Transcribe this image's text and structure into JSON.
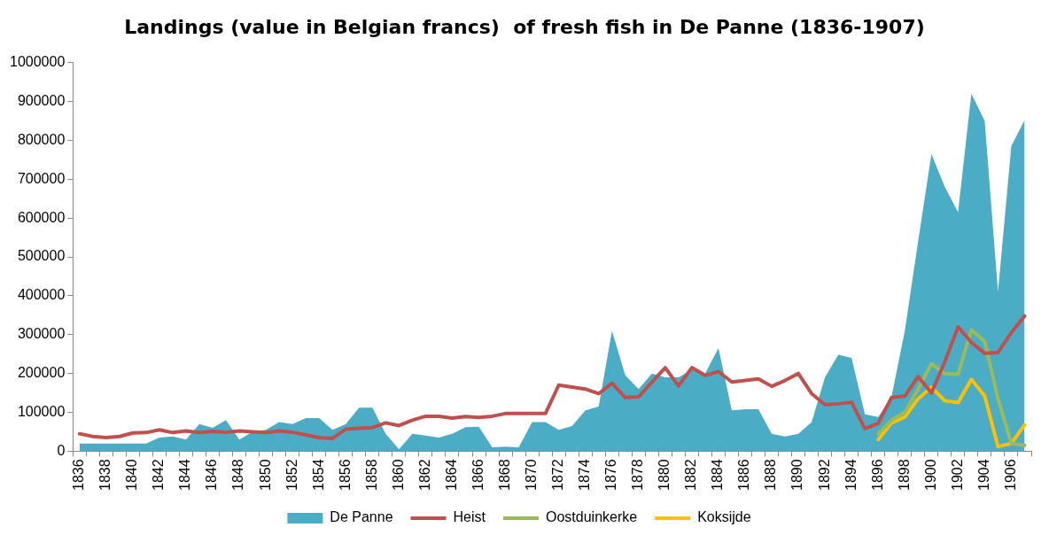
{
  "chart_data": {
    "type": "line",
    "title": "Landings (value in Belgian francs)  of fresh fish in De Panne (1836-1907)",
    "categories": [
      "1836",
      null,
      "1838",
      null,
      "1840",
      null,
      "1842",
      null,
      "1844",
      null,
      "1846",
      null,
      "1848",
      null,
      "1850",
      null,
      "1852",
      null,
      "1854",
      null,
      "1856",
      null,
      "1858",
      null,
      "1860",
      null,
      "1862",
      null,
      "1864",
      null,
      "1866",
      null,
      "1868",
      null,
      "1870",
      null,
      "1872",
      null,
      "1874",
      null,
      "1876",
      null,
      "1878",
      null,
      "1880",
      null,
      "1882",
      null,
      "1884",
      null,
      "1886",
      null,
      "1888",
      null,
      "1890",
      null,
      "1892",
      null,
      "1894",
      null,
      "1896",
      null,
      "1898",
      null,
      "1900",
      null,
      "1902",
      null,
      "1904",
      null,
      "1906",
      null
    ],
    "series": [
      {
        "name": "De Panne",
        "type": "area",
        "color": "#4bacc6",
        "values": [
          20000,
          20000,
          20000,
          20000,
          20000,
          20000,
          35000,
          38000,
          30000,
          70000,
          60000,
          80000,
          30000,
          50000,
          55000,
          75000,
          70000,
          85000,
          85000,
          55000,
          70000,
          112000,
          112000,
          45000,
          5000,
          45000,
          40000,
          35000,
          45000,
          62000,
          63000,
          10000,
          12000,
          10000,
          75000,
          75000,
          55000,
          65000,
          105000,
          115000,
          310000,
          195000,
          160000,
          200000,
          190000,
          190000,
          210000,
          200000,
          265000,
          105000,
          108000,
          108000,
          45000,
          38000,
          45000,
          75000,
          190000,
          248000,
          240000,
          95000,
          88000,
          140000,
          310000,
          540000,
          765000,
          680000,
          615000,
          920000,
          850000,
          410000,
          785000,
          852000
        ]
      },
      {
        "name": "Heist",
        "type": "line",
        "color": "#c0504d",
        "values": [
          45000,
          38000,
          35000,
          38000,
          47000,
          48000,
          55000,
          48000,
          52000,
          48000,
          51000,
          49000,
          52000,
          50000,
          48000,
          52000,
          49000,
          42000,
          35000,
          33000,
          57000,
          59000,
          61000,
          73000,
          66000,
          80000,
          90000,
          90000,
          85000,
          89000,
          87000,
          90000,
          97000,
          97000,
          97000,
          97000,
          170000,
          165000,
          160000,
          148000,
          175000,
          138000,
          140000,
          178000,
          215000,
          168000,
          215000,
          195000,
          205000,
          178000,
          182000,
          186000,
          167000,
          182000,
          200000,
          148000,
          120000,
          122000,
          126000,
          58000,
          72000,
          138000,
          142000,
          192000,
          150000,
          230000,
          320000,
          280000,
          252000,
          254000,
          305000,
          348000
        ]
      },
      {
        "name": "Oostduinkerke",
        "type": "line",
        "color": "#9bbb59",
        "values": [
          null,
          null,
          null,
          null,
          null,
          null,
          null,
          null,
          null,
          null,
          null,
          null,
          null,
          null,
          null,
          null,
          null,
          null,
          null,
          null,
          null,
          null,
          null,
          null,
          null,
          null,
          null,
          null,
          null,
          null,
          null,
          null,
          null,
          null,
          null,
          null,
          null,
          null,
          null,
          null,
          null,
          null,
          null,
          null,
          null,
          null,
          null,
          null,
          null,
          null,
          null,
          null,
          null,
          null,
          null,
          null,
          null,
          null,
          null,
          null,
          45000,
          80000,
          100000,
          160000,
          225000,
          200000,
          198000,
          312000,
          283000,
          135000,
          20000,
          15000
        ]
      },
      {
        "name": "Koksijde",
        "type": "line",
        "color": "#ffc000",
        "values": [
          null,
          null,
          null,
          null,
          null,
          null,
          null,
          null,
          null,
          null,
          null,
          null,
          null,
          null,
          null,
          null,
          null,
          null,
          null,
          null,
          null,
          null,
          null,
          null,
          null,
          null,
          null,
          null,
          null,
          null,
          null,
          null,
          null,
          null,
          null,
          null,
          null,
          null,
          null,
          null,
          null,
          null,
          null,
          null,
          null,
          null,
          null,
          null,
          null,
          null,
          null,
          null,
          null,
          null,
          null,
          null,
          null,
          null,
          null,
          null,
          30000,
          73000,
          88000,
          135000,
          165000,
          130000,
          125000,
          185000,
          142000,
          12000,
          20000,
          68000
        ]
      }
    ],
    "ylim": [
      0,
      1000000
    ],
    "yticks": [
      0,
      100000,
      200000,
      300000,
      400000,
      500000,
      600000,
      700000,
      800000,
      900000,
      1000000
    ],
    "legend": "bottom",
    "marker": "none"
  }
}
